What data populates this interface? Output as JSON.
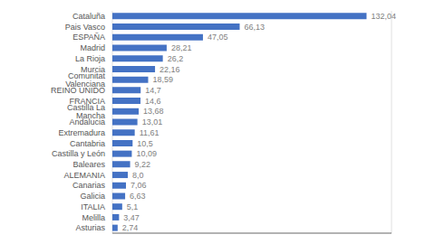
{
  "chart_data": {
    "type": "bar",
    "orientation": "horizontal",
    "categories": [
      "Cataluña",
      "Pais Vasco",
      "ESPAÑA",
      "Madrid",
      "La Rioja",
      "Murcia",
      "Comunitat Valenciana",
      "REINO UNIDO",
      "FRANCIA",
      "Castilla La Mancha",
      "Andalucia",
      "Extremadura",
      "Cantabria",
      "Castilla y León",
      "Baleares",
      "ALEMANIA",
      "Canarias",
      "Galicia",
      "ITALIA",
      "Melilla",
      "Asturias"
    ],
    "values": [
      132.04,
      66.13,
      47.05,
      28.21,
      26.2,
      22.16,
      18.59,
      14.7,
      14.6,
      13.68,
      13.01,
      11.61,
      10.5,
      10.09,
      9.22,
      8.0,
      7.06,
      6.63,
      5.1,
      3.47,
      2.74
    ],
    "value_labels": [
      "132,04",
      "66,13",
      "47,05",
      "28,21",
      "26,2",
      "22,16",
      "18,59",
      "14,7",
      "14,6",
      "13,68",
      "13,01",
      "11,61",
      "10,5",
      "10,09",
      "9,22",
      "8,0",
      "7,06",
      "6,63",
      "5,1",
      "3,47",
      "2,74"
    ],
    "color": "#4472C4",
    "xlim": [
      0,
      145
    ],
    "xticks": [
      0,
      20,
      40,
      60,
      80,
      100,
      120,
      140
    ],
    "grid": true,
    "data_labels": true,
    "tick_labels": "y"
  }
}
